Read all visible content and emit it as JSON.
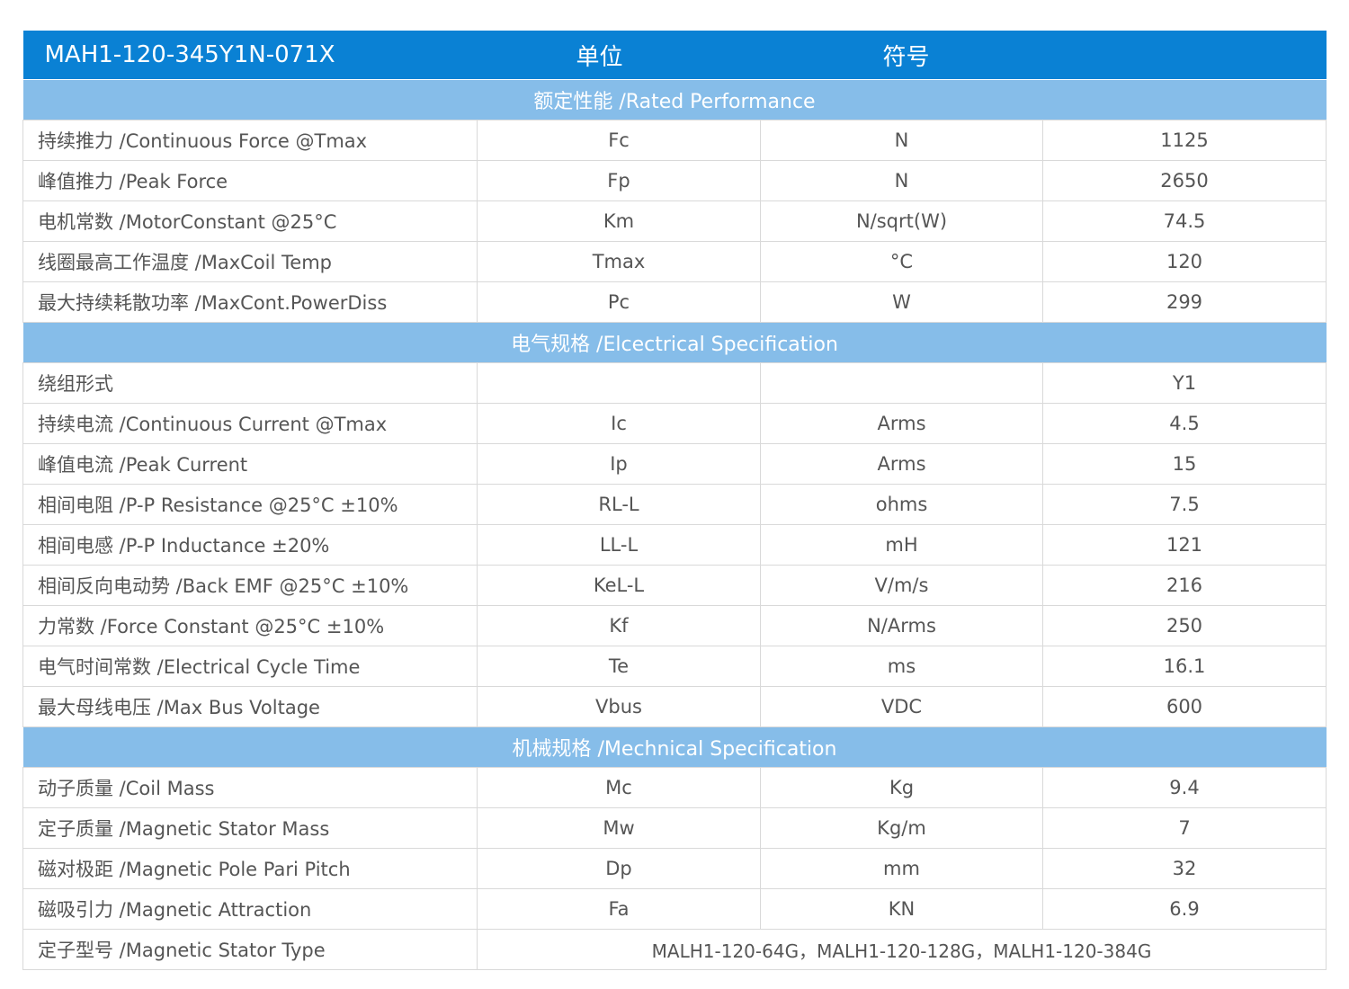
{
  "header": {
    "model": "MAH1-120-345Y1N-071X",
    "unit_label": "单位",
    "symbol_label": "符号"
  },
  "sections": [
    {
      "title": "额定性能 /Rated Performance",
      "rows": [
        {
          "param": "持续推力 /Continuous Force @Tmax",
          "symbol": "Fc",
          "unit": "N",
          "value": "1125"
        },
        {
          "param": "峰值推力 /Peak Force",
          "symbol": "Fp",
          "unit": "N",
          "value": "2650"
        },
        {
          "param": "电机常数 /MotorConstant @25°C",
          "symbol": "Km",
          "unit": "N/sqrt(W)",
          "value": "74.5"
        },
        {
          "param": "线圈最高工作温度 /MaxCoil Temp",
          "symbol": "Tmax",
          "unit": "°C",
          "value": "120"
        },
        {
          "param": "最大持续耗散功率 /MaxCont.PowerDiss",
          "symbol": "Pc",
          "unit": "W",
          "value": "299"
        }
      ]
    },
    {
      "title": "电气规格 /Elcectrical Specification",
      "rows": [
        {
          "param": "绕组形式",
          "symbol": "",
          "unit": "",
          "value": "Y1"
        },
        {
          "param": "持续电流 /Continuous Current @Tmax",
          "symbol": "Ic",
          "unit": "Arms",
          "value": "4.5"
        },
        {
          "param": "峰值电流 /Peak Current",
          "symbol": "Ip",
          "unit": "Arms",
          "value": "15"
        },
        {
          "param": "相间电阻 /P-P Resistance @25°C ±10%",
          "symbol": "RL-L",
          "unit": "ohms",
          "value": "7.5"
        },
        {
          "param": "相间电感 /P-P Inductance ±20%",
          "symbol": "LL-L",
          "unit": "mH",
          "value": "121"
        },
        {
          "param": "相间反向电动势 /Back EMF @25°C ±10%",
          "symbol": "KeL-L",
          "unit": "V/m/s",
          "value": "216"
        },
        {
          "param": "力常数 /Force Constant @25°C ±10%",
          "symbol": "Kf",
          "unit": "N/Arms",
          "value": "250"
        },
        {
          "param": "电气时间常数 /Electrical Cycle Time",
          "symbol": "Te",
          "unit": "ms",
          "value": "16.1"
        },
        {
          "param": "最大母线电压 /Max Bus Voltage",
          "symbol": "Vbus",
          "unit": "VDC",
          "value": "600"
        }
      ]
    },
    {
      "title": "机械规格 /Mechnical Specification",
      "rows": [
        {
          "param": "动子质量 /Coil Mass",
          "symbol": "Mc",
          "unit": "Kg",
          "value": "9.4"
        },
        {
          "param": "定子质量 /Magnetic Stator Mass",
          "symbol": "Mw",
          "unit": "Kg/m",
          "value": "7"
        },
        {
          "param": "磁对极距 /Magnetic Pole Pari Pitch",
          "symbol": "Dp",
          "unit": "mm",
          "value": "32"
        },
        {
          "param": "磁吸引力 /Magnetic Attraction",
          "symbol": "Fa",
          "unit": "KN",
          "value": "6.9"
        },
        {
          "param": "定子型号 /Magnetic Stator Type",
          "merged": "MALH1-120-64G，MALH1-120-128G，MALH1-120-384G"
        }
      ]
    }
  ]
}
